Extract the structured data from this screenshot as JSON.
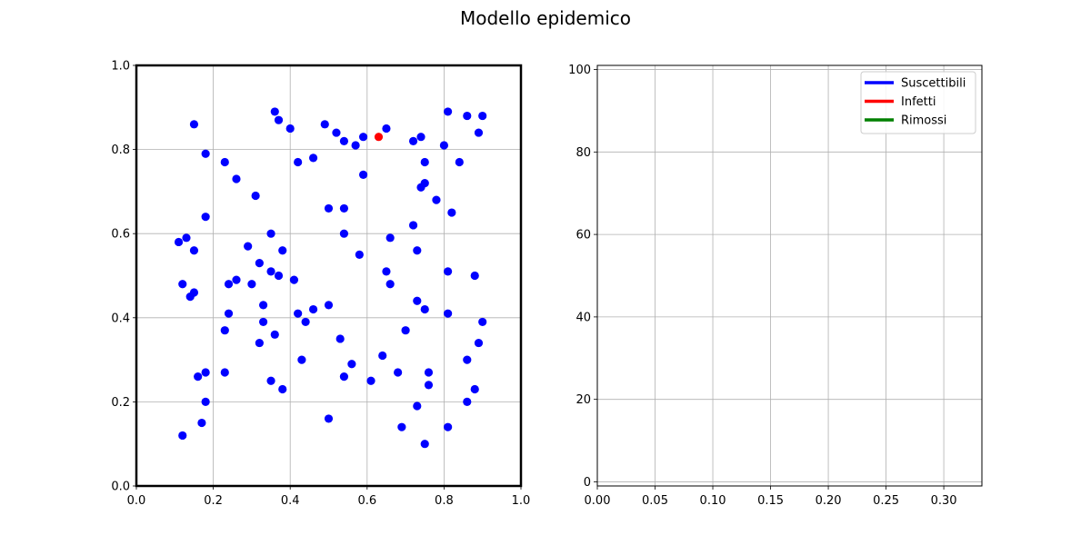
{
  "figure": {
    "title": "Modello epidemico"
  },
  "colors": {
    "susceptible": "#0000ff",
    "infected": "#ff0000",
    "removed": "#008000",
    "grid": "#b0b0b0"
  },
  "chart_data": [
    {
      "type": "scatter",
      "title": "",
      "xlabel": "",
      "ylabel": "",
      "xlim": [
        0.0,
        1.0
      ],
      "ylim": [
        0.0,
        1.0
      ],
      "grid": true,
      "x_ticks": [
        "0.0",
        "0.2",
        "0.4",
        "0.6",
        "0.8",
        "1.0"
      ],
      "y_ticks": [
        "0.0",
        "0.2",
        "0.4",
        "0.6",
        "0.8",
        "1.0"
      ],
      "series": [
        {
          "name": "",
          "status": "susceptible",
          "points": [
            [
              0.36,
              0.89
            ],
            [
              0.37,
              0.87
            ],
            [
              0.4,
              0.85
            ],
            [
              0.49,
              0.86
            ],
            [
              0.52,
              0.84
            ],
            [
              0.54,
              0.82
            ],
            [
              0.57,
              0.81
            ],
            [
              0.59,
              0.83
            ],
            [
              0.65,
              0.85
            ],
            [
              0.72,
              0.82
            ],
            [
              0.74,
              0.83
            ],
            [
              0.8,
              0.81
            ],
            [
              0.81,
              0.89
            ],
            [
              0.86,
              0.88
            ],
            [
              0.9,
              0.88
            ],
            [
              0.89,
              0.84
            ],
            [
              0.15,
              0.86
            ],
            [
              0.18,
              0.79
            ],
            [
              0.23,
              0.77
            ],
            [
              0.26,
              0.73
            ],
            [
              0.42,
              0.77
            ],
            [
              0.46,
              0.78
            ],
            [
              0.59,
              0.74
            ],
            [
              0.75,
              0.77
            ],
            [
              0.84,
              0.77
            ],
            [
              0.75,
              0.72
            ],
            [
              0.74,
              0.71
            ],
            [
              0.78,
              0.68
            ],
            [
              0.31,
              0.69
            ],
            [
              0.82,
              0.65
            ],
            [
              0.18,
              0.64
            ],
            [
              0.5,
              0.66
            ],
            [
              0.54,
              0.66
            ],
            [
              0.72,
              0.62
            ],
            [
              0.11,
              0.58
            ],
            [
              0.13,
              0.59
            ],
            [
              0.15,
              0.56
            ],
            [
              0.35,
              0.6
            ],
            [
              0.54,
              0.6
            ],
            [
              0.66,
              0.59
            ],
            [
              0.29,
              0.57
            ],
            [
              0.38,
              0.56
            ],
            [
              0.73,
              0.56
            ],
            [
              0.58,
              0.55
            ],
            [
              0.32,
              0.53
            ],
            [
              0.35,
              0.51
            ],
            [
              0.37,
              0.5
            ],
            [
              0.65,
              0.51
            ],
            [
              0.81,
              0.51
            ],
            [
              0.88,
              0.5
            ],
            [
              0.12,
              0.48
            ],
            [
              0.24,
              0.48
            ],
            [
              0.26,
              0.49
            ],
            [
              0.3,
              0.48
            ],
            [
              0.41,
              0.49
            ],
            [
              0.66,
              0.48
            ],
            [
              0.14,
              0.45
            ],
            [
              0.15,
              0.46
            ],
            [
              0.33,
              0.43
            ],
            [
              0.46,
              0.42
            ],
            [
              0.5,
              0.43
            ],
            [
              0.73,
              0.44
            ],
            [
              0.75,
              0.42
            ],
            [
              0.24,
              0.41
            ],
            [
              0.42,
              0.41
            ],
            [
              0.81,
              0.41
            ],
            [
              0.33,
              0.39
            ],
            [
              0.44,
              0.39
            ],
            [
              0.9,
              0.39
            ],
            [
              0.23,
              0.37
            ],
            [
              0.36,
              0.36
            ],
            [
              0.7,
              0.37
            ],
            [
              0.32,
              0.34
            ],
            [
              0.53,
              0.35
            ],
            [
              0.89,
              0.34
            ],
            [
              0.43,
              0.3
            ],
            [
              0.56,
              0.29
            ],
            [
              0.64,
              0.31
            ],
            [
              0.86,
              0.3
            ],
            [
              0.18,
              0.27
            ],
            [
              0.23,
              0.27
            ],
            [
              0.16,
              0.26
            ],
            [
              0.54,
              0.26
            ],
            [
              0.68,
              0.27
            ],
            [
              0.76,
              0.27
            ],
            [
              0.35,
              0.25
            ],
            [
              0.61,
              0.25
            ],
            [
              0.76,
              0.24
            ],
            [
              0.38,
              0.23
            ],
            [
              0.88,
              0.23
            ],
            [
              0.18,
              0.2
            ],
            [
              0.73,
              0.19
            ],
            [
              0.86,
              0.2
            ],
            [
              0.5,
              0.16
            ],
            [
              0.17,
              0.15
            ],
            [
              0.69,
              0.14
            ],
            [
              0.81,
              0.14
            ],
            [
              0.12,
              0.12
            ],
            [
              0.75,
              0.1
            ]
          ]
        },
        {
          "name": "",
          "status": "infected",
          "points": [
            [
              0.63,
              0.83
            ]
          ]
        }
      ]
    },
    {
      "type": "line",
      "title": "",
      "xlabel": "",
      "ylabel": "",
      "xlim": [
        0.0,
        0.333
      ],
      "ylim": [
        -1,
        101
      ],
      "grid": true,
      "x_ticks": [
        "0.00",
        "0.05",
        "0.10",
        "0.15",
        "0.20",
        "0.25",
        "0.30"
      ],
      "y_ticks": [
        "0",
        "20",
        "40",
        "60",
        "80",
        "100"
      ],
      "legend_position": "top-right",
      "series": [
        {
          "name": "Suscettibili",
          "color": "#0000ff",
          "x": [],
          "y": []
        },
        {
          "name": "Infetti",
          "color": "#ff0000",
          "x": [],
          "y": []
        },
        {
          "name": "Rimossi",
          "color": "#008000",
          "x": [],
          "y": []
        }
      ]
    }
  ]
}
